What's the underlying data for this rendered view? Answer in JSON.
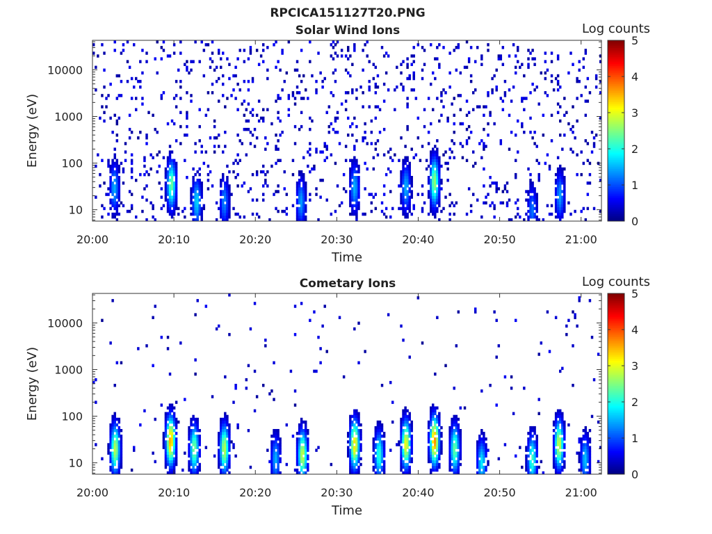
{
  "figure_title": "RPCICA151127T20.PNG",
  "chart_data": [
    {
      "type": "heatmap",
      "title": "Solar Wind Ions",
      "xlabel": "Time",
      "ylabel": "Energy (eV)",
      "x_tick_labels": [
        "20:00",
        "20:10",
        "20:20",
        "20:30",
        "20:40",
        "20:50",
        "21:00"
      ],
      "x_ticks_minutes": [
        0,
        10,
        20,
        30,
        40,
        50,
        60
      ],
      "xlim_minutes": [
        0,
        62.5
      ],
      "y_scale": "log",
      "y_tick_labels": [
        "10",
        "100",
        "1000",
        "10000"
      ],
      "y_ticks": [
        10,
        100,
        1000,
        10000
      ],
      "ylim": [
        5.7,
        43000
      ],
      "colorbar": {
        "label": "Log counts",
        "range": [
          0,
          5
        ],
        "ticks": [
          0,
          1,
          2,
          3,
          4,
          5
        ],
        "tick_labels": [
          "0",
          "1",
          "2",
          "3",
          "4",
          "5"
        ],
        "colormap": "jet"
      },
      "bursts": [
        {
          "t": 2.7,
          "e_peak": 30,
          "peak_log": 1.5
        },
        {
          "t": 9.7,
          "e_peak": 35,
          "peak_log": 2.4
        },
        {
          "t": 12.8,
          "e_peak": 15,
          "peak_log": 1.7
        },
        {
          "t": 16.2,
          "e_peak": 15,
          "peak_log": 1.3
        },
        {
          "t": 25.6,
          "e_peak": 15,
          "peak_log": 1.4
        },
        {
          "t": 32.2,
          "e_peak": 30,
          "peak_log": 1.5
        },
        {
          "t": 38.5,
          "e_peak": 30,
          "peak_log": 1.5
        },
        {
          "t": 42.0,
          "e_peak": 40,
          "peak_log": 2.6
        },
        {
          "t": 54.0,
          "e_peak": 10,
          "peak_log": 1.2
        },
        {
          "t": 57.4,
          "e_peak": 20,
          "peak_log": 1.4
        }
      ]
    },
    {
      "type": "heatmap",
      "title": "Cometary Ions",
      "xlabel": "Time",
      "ylabel": "Energy (eV)",
      "x_tick_labels": [
        "20:00",
        "20:10",
        "20:20",
        "20:30",
        "20:40",
        "20:50",
        "21:00"
      ],
      "x_ticks_minutes": [
        0,
        10,
        20,
        30,
        40,
        50,
        60
      ],
      "xlim_minutes": [
        0,
        62.5
      ],
      "y_scale": "log",
      "y_tick_labels": [
        "10",
        "100",
        "1000",
        "10000"
      ],
      "y_ticks": [
        10,
        100,
        1000,
        10000
      ],
      "ylim": [
        5.7,
        43000
      ],
      "colorbar": {
        "label": "Log counts",
        "range": [
          0,
          5
        ],
        "ticks": [
          0,
          1,
          2,
          3,
          4,
          5
        ],
        "tick_labels": [
          "0",
          "1",
          "2",
          "3",
          "4",
          "5"
        ],
        "colormap": "jet"
      },
      "bursts": [
        {
          "t": 2.8,
          "e_peak": 20,
          "peak_log": 2.8
        },
        {
          "t": 9.6,
          "e_peak": 30,
          "peak_log": 3.6
        },
        {
          "t": 12.5,
          "e_peak": 20,
          "peak_log": 2.5
        },
        {
          "t": 16.2,
          "e_peak": 20,
          "peak_log": 2.8
        },
        {
          "t": 22.5,
          "e_peak": 12,
          "peak_log": 1.5
        },
        {
          "t": 25.8,
          "e_peak": 15,
          "peak_log": 2.9
        },
        {
          "t": 32.2,
          "e_peak": 25,
          "peak_log": 3.3
        },
        {
          "t": 35.2,
          "e_peak": 15,
          "peak_log": 2.1
        },
        {
          "t": 38.5,
          "e_peak": 25,
          "peak_log": 3.1
        },
        {
          "t": 42.0,
          "e_peak": 30,
          "peak_log": 3.7
        },
        {
          "t": 44.5,
          "e_peak": 20,
          "peak_log": 2.4
        },
        {
          "t": 47.8,
          "e_peak": 10,
          "peak_log": 1.8
        },
        {
          "t": 54.0,
          "e_peak": 12,
          "peak_log": 2.2
        },
        {
          "t": 57.3,
          "e_peak": 25,
          "peak_log": 2.9
        },
        {
          "t": 60.5,
          "e_peak": 12,
          "peak_log": 1.6
        }
      ]
    }
  ]
}
